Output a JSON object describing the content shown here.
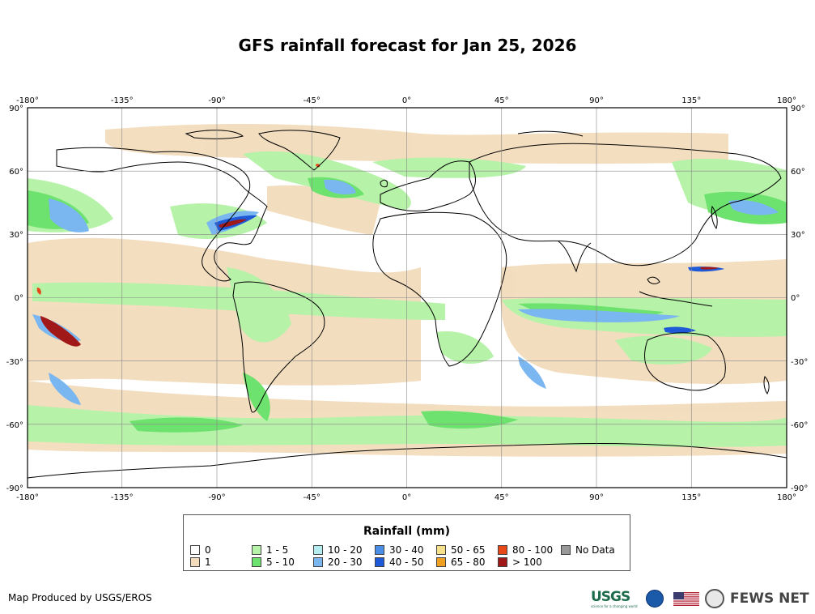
{
  "title": "GFS rainfall forecast for Jan 25, 2026",
  "axes": {
    "lon_ticks": [
      "-180°",
      "-135°",
      "-90°",
      "-45°",
      "0°",
      "45°",
      "90°",
      "135°",
      "180°"
    ],
    "lat_ticks": [
      "90°",
      "60°",
      "30°",
      "0°",
      "-30°",
      "-60°",
      "-90°"
    ]
  },
  "map": {
    "projection": "equirectangular",
    "lon_range": [
      -180,
      180
    ],
    "lat_range": [
      -90,
      90
    ],
    "ocean_color": "#ffffff",
    "land_outline_color": "#000000"
  },
  "legend": {
    "title": "Rainfall (mm)",
    "items": [
      {
        "label": "0",
        "color": "#ffffff"
      },
      {
        "label": "1",
        "color": "#f2dcbc"
      },
      {
        "label": "1 - 5",
        "color": "#b6f2a8"
      },
      {
        "label": "5 - 10",
        "color": "#6ee26e"
      },
      {
        "label": "10 - 20",
        "color": "#b4ecf0"
      },
      {
        "label": "20 - 30",
        "color": "#7ab6f0"
      },
      {
        "label": "30 - 40",
        "color": "#4a8ee8"
      },
      {
        "label": "40 - 50",
        "color": "#1e5ad8"
      },
      {
        "label": "50 - 65",
        "color": "#f7e08a"
      },
      {
        "label": "65 - 80",
        "color": "#f0a020"
      },
      {
        "label": "80 - 100",
        "color": "#e84818"
      },
      {
        "label": "> 100",
        "color": "#a01818"
      },
      {
        "label": "No Data",
        "color": "#999999"
      }
    ]
  },
  "footer": {
    "credit": "Map Produced by USGS/EROS",
    "usgs_logo_text": "USGS",
    "usgs_tagline": "science for a changing world",
    "fews_text": "FEWS NET"
  }
}
